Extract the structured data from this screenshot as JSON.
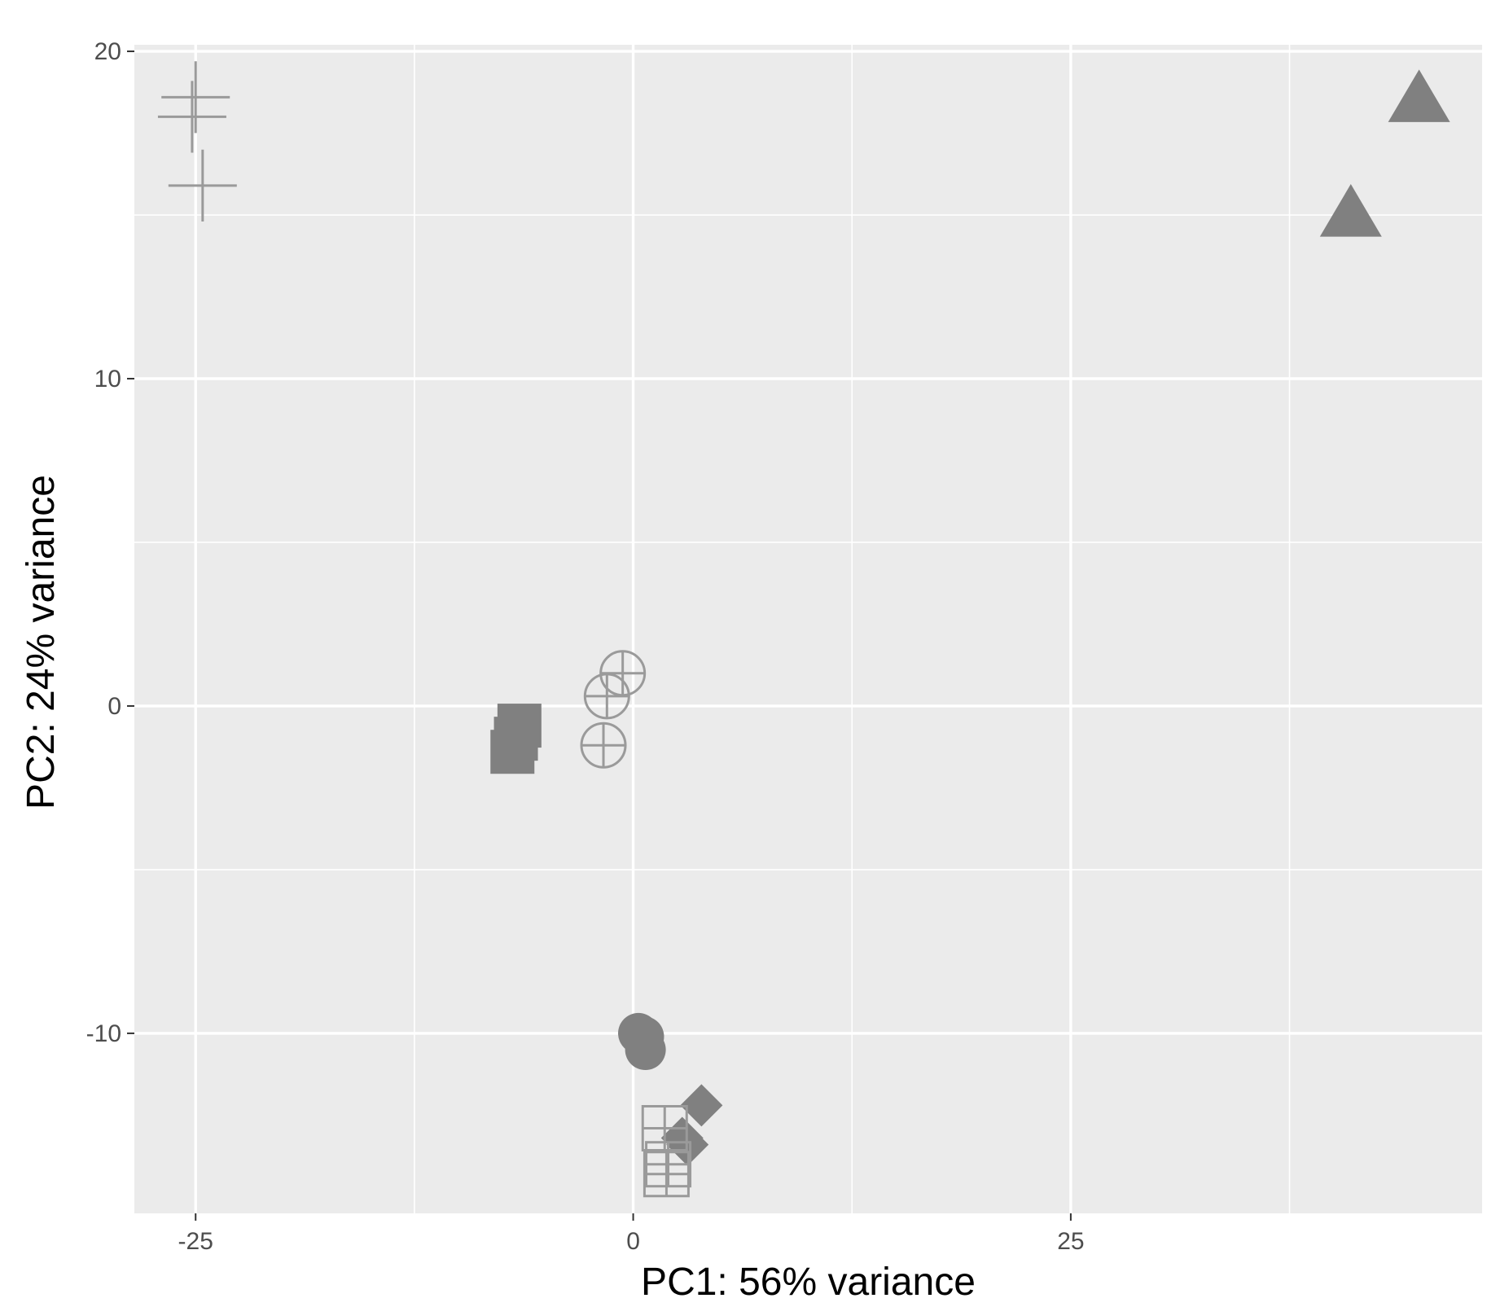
{
  "chart_data": {
    "type": "scatter",
    "xlabel": "PC1: 56% variance",
    "ylabel": "PC2: 24% variance",
    "x_ticks": [
      {
        "value": -25,
        "label": "-25"
      },
      {
        "value": 0,
        "label": "0"
      },
      {
        "value": 25,
        "label": "25"
      }
    ],
    "y_ticks": [
      {
        "value": -10,
        "label": "-10"
      },
      {
        "value": 0,
        "label": "0"
      },
      {
        "value": 10,
        "label": "10"
      },
      {
        "value": 20,
        "label": "20"
      }
    ],
    "xlim": [
      -28.5,
      48.5
    ],
    "ylim": [
      -15.5,
      20.2
    ],
    "grid": true,
    "legend": "none",
    "colors": {
      "panel_background": "#ebebeb",
      "grid_line": "#ffffff",
      "point": "#808080",
      "open_point": "#9a9a9a",
      "tick_text": "#4d4d4d",
      "axis_title": "#000000"
    },
    "series": [
      {
        "shape": "plus",
        "points": [
          {
            "x": -25,
            "y": 18.6
          },
          {
            "x": -25.2,
            "y": 18.0
          },
          {
            "x": -24.6,
            "y": 15.9
          }
        ]
      },
      {
        "shape": "triangle",
        "points": [
          {
            "x": 44.9,
            "y": 18.5
          },
          {
            "x": 41.0,
            "y": 15.0
          }
        ]
      },
      {
        "shape": "square",
        "points": [
          {
            "x": -6.5,
            "y": -0.6
          },
          {
            "x": -6.7,
            "y": -1.0
          },
          {
            "x": -6.9,
            "y": -1.4
          }
        ]
      },
      {
        "shape": "circle-plus",
        "points": [
          {
            "x": -0.6,
            "y": 1.0
          },
          {
            "x": -1.5,
            "y": 0.3
          },
          {
            "x": -1.7,
            "y": -1.2
          }
        ]
      },
      {
        "shape": "circle",
        "points": [
          {
            "x": 0.3,
            "y": -10.0
          },
          {
            "x": 0.6,
            "y": -10.1
          },
          {
            "x": 0.7,
            "y": -10.5
          }
        ]
      },
      {
        "shape": "diamond",
        "points": [
          {
            "x": 3.9,
            "y": -12.2
          },
          {
            "x": 2.8,
            "y": -13.2
          },
          {
            "x": 3.1,
            "y": -13.4
          }
        ]
      },
      {
        "shape": "square-cross",
        "points": [
          {
            "x": 1.8,
            "y": -12.9
          },
          {
            "x": 2.0,
            "y": -14.0
          },
          {
            "x": 1.9,
            "y": -14.3
          }
        ]
      }
    ]
  }
}
